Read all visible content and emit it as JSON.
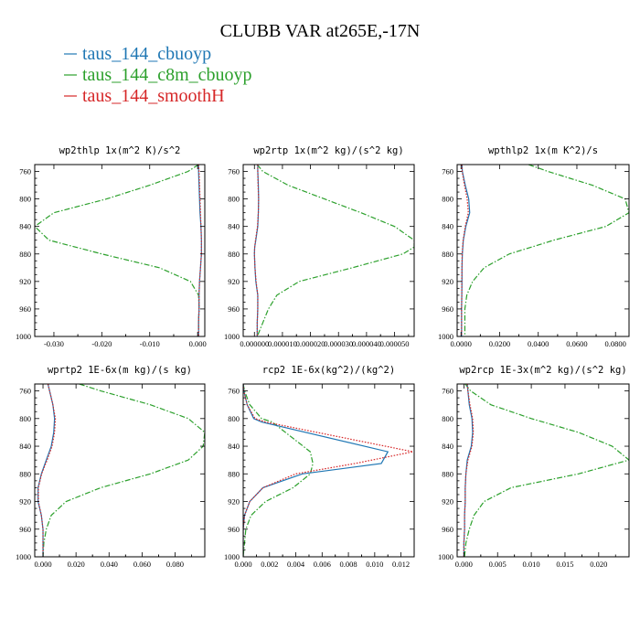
{
  "title": "CLUBB VAR at265E,-17N",
  "series": [
    {
      "name": "taus_144_cbuoyp",
      "color": "#1f77b4",
      "dash": "solid"
    },
    {
      "name": "taus_144_c8m_cbuoyp",
      "color": "#2ca02c",
      "dash": "dashdot"
    },
    {
      "name": "taus_144_smoothH",
      "color": "#d62728",
      "dash": "dotted"
    }
  ],
  "chart_data": [
    {
      "type": "line",
      "title": "wp2thlp  1x(m^2 K)/s^2",
      "ylim": [
        1000,
        750
      ],
      "yticks": [
        760,
        800,
        840,
        880,
        920,
        960,
        1000
      ],
      "ytick_labels": [
        "760",
        "800",
        "840",
        "880",
        "920",
        "960",
        "1000"
      ],
      "xlim": [
        -0.034,
        0.0015
      ],
      "xticks": [
        -0.03,
        -0.02,
        -0.01,
        0.0
      ],
      "xtick_labels": [
        "-0.030",
        "-0.020",
        "-0.010",
        "0.000"
      ],
      "y": [
        750,
        760,
        780,
        800,
        820,
        840,
        860,
        880,
        900,
        920,
        940,
        960,
        980,
        1000
      ],
      "series": [
        {
          "name": "taus_144_cbuoyp",
          "values": [
            0.0002,
            0.0002,
            0.0003,
            0.0004,
            0.0005,
            0.0007,
            0.0008,
            0.0008,
            0.0006,
            0.0004,
            0.0003,
            0.0003,
            0.0002,
            0.0002
          ]
        },
        {
          "name": "taus_144_c8m_cbuoyp",
          "values": [
            0.0002,
            -0.002,
            -0.01,
            -0.019,
            -0.03,
            -0.034,
            -0.031,
            -0.02,
            -0.008,
            -0.0015,
            0.0002,
            0.0003,
            0.0002,
            0.0002
          ]
        },
        {
          "name": "taus_144_smoothH",
          "values": [
            0.0002,
            0.0003,
            0.0004,
            0.0005,
            0.0006,
            0.0007,
            0.0008,
            0.0008,
            0.0006,
            0.0004,
            0.0003,
            0.0003,
            0.0002,
            0.0002
          ]
        }
      ]
    },
    {
      "type": "line",
      "title": "wp2rtp  1x(m^2 kg)/(s^2 kg)",
      "ylim": [
        1000,
        750
      ],
      "yticks": [
        760,
        800,
        840,
        880,
        920,
        960,
        1000
      ],
      "ytick_labels": [
        "760",
        "800",
        "840",
        "880",
        "920",
        "960",
        "1000"
      ],
      "xlim": [
        -4e-06,
        5.7e-05
      ],
      "xticks": [
        0.0,
        1e-05,
        2e-05,
        3e-05,
        4e-05,
        5e-05
      ],
      "xtick_labels": [
        "0.000000",
        "0.000010",
        "0.000020",
        "0.000030",
        "0.000040",
        "0.000050"
      ],
      "y": [
        750,
        760,
        780,
        800,
        820,
        840,
        860,
        870,
        880,
        900,
        920,
        940,
        960,
        980,
        1000
      ],
      "series": [
        {
          "name": "taus_144_cbuoyp",
          "values": [
            1.2e-06,
            1.2e-06,
            1.4e-06,
            1.5e-06,
            1.4e-06,
            1.2e-06,
            5e-07,
            1e-07,
            0.0,
            2e-07,
            5e-07,
            1.2e-06,
            1.2e-06,
            1e-06,
            1e-06
          ]
        },
        {
          "name": "taus_144_c8m_cbuoyp",
          "values": [
            1e-06,
            3e-06,
            1.2e-05,
            2.5e-05,
            3.8e-05,
            5e-05,
            5.7e-05,
            5.7e-05,
            5.3e-05,
            3.5e-05,
            1.6e-05,
            8e-06,
            5e-06,
            3e-06,
            1e-06
          ]
        },
        {
          "name": "taus_144_smoothH",
          "values": [
            1.2e-06,
            1.2e-06,
            1.3e-06,
            1.5e-06,
            1.4e-06,
            1.1e-06,
            4e-07,
            1e-07,
            0.0,
            2e-07,
            6e-07,
            1.2e-06,
            1.2e-06,
            1e-06,
            1e-06
          ]
        }
      ]
    },
    {
      "type": "line",
      "title": "wpthlp2  1x(m K^2)/s",
      "ylim": [
        1000,
        750
      ],
      "yticks": [
        760,
        800,
        840,
        880,
        920,
        960,
        1000
      ],
      "ytick_labels": [
        "760",
        "800",
        "840",
        "880",
        "920",
        "960",
        "1000"
      ],
      "xlim": [
        -0.002,
        0.087
      ],
      "xticks": [
        0.0,
        0.02,
        0.04,
        0.06,
        0.08
      ],
      "xtick_labels": [
        "0.0000",
        "0.0200",
        "0.0400",
        "0.0600",
        "0.0800"
      ],
      "y": [
        750,
        760,
        780,
        800,
        820,
        840,
        860,
        880,
        900,
        920,
        940,
        960,
        980,
        1000
      ],
      "series": [
        {
          "name": "taus_144_cbuoyp",
          "values": [
            0.0005,
            0.0007,
            0.0022,
            0.004,
            0.0045,
            0.0025,
            0.0012,
            0.0007,
            0.0005,
            0.0005,
            0.0004,
            0.0003,
            0.0003,
            0.0003
          ]
        },
        {
          "name": "taus_144_c8m_cbuoyp",
          "values": [
            0.035,
            0.045,
            0.068,
            0.085,
            0.087,
            0.075,
            0.048,
            0.025,
            0.012,
            0.006,
            0.003,
            0.002,
            0.002,
            0.002
          ]
        },
        {
          "name": "taus_144_smoothH",
          "values": [
            0.0004,
            0.0006,
            0.0018,
            0.0032,
            0.0038,
            0.0022,
            0.0011,
            0.0006,
            0.0005,
            0.0004,
            0.0004,
            0.0003,
            0.0003,
            0.0003
          ]
        }
      ]
    },
    {
      "type": "line",
      "title": "wprtp2  1E-6x(m kg)/(s kg)",
      "ylim": [
        1000,
        750
      ],
      "yticks": [
        760,
        800,
        840,
        880,
        920,
        960,
        1000
      ],
      "ytick_labels": [
        "760",
        "800",
        "840",
        "880",
        "920",
        "960",
        "1000"
      ],
      "xlim": [
        -0.005,
        0.098
      ],
      "xticks": [
        0.0,
        0.02,
        0.04,
        0.06,
        0.08
      ],
      "xtick_labels": [
        "0.000",
        "0.020",
        "0.040",
        "0.060",
        "0.080"
      ],
      "y": [
        750,
        760,
        780,
        800,
        820,
        840,
        860,
        880,
        900,
        920,
        940,
        960,
        980,
        1000
      ],
      "series": [
        {
          "name": "taus_144_cbuoyp",
          "values": [
            0.003,
            0.004,
            0.006,
            0.007,
            0.0065,
            0.005,
            0.002,
            -0.001,
            -0.003,
            -0.003,
            -0.001,
            0.0,
            0.0,
            0.0
          ]
        },
        {
          "name": "taus_144_c8m_cbuoyp",
          "values": [
            0.022,
            0.035,
            0.065,
            0.088,
            0.098,
            0.097,
            0.088,
            0.065,
            0.035,
            0.014,
            0.005,
            0.002,
            0.0005,
            0.0
          ]
        },
        {
          "name": "taus_144_smoothH",
          "values": [
            0.003,
            0.004,
            0.006,
            0.0075,
            0.007,
            0.0055,
            0.0025,
            -0.0008,
            -0.0028,
            -0.0028,
            -0.001,
            0.0,
            0.0,
            0.0
          ]
        }
      ]
    },
    {
      "type": "line",
      "title": "rcp2  1E-6x(kg^2)/(kg^2)",
      "ylim": [
        1000,
        750
      ],
      "yticks": [
        760,
        800,
        840,
        880,
        920,
        960,
        1000
      ],
      "ytick_labels": [
        "760",
        "800",
        "840",
        "880",
        "920",
        "960",
        "1000"
      ],
      "xlim": [
        0.0,
        0.013
      ],
      "xticks": [
        0.0,
        0.002,
        0.004,
        0.006,
        0.008,
        0.01,
        0.012
      ],
      "xtick_labels": [
        "0.000",
        "0.002",
        "0.004",
        "0.006",
        "0.008",
        "0.010",
        "0.012"
      ],
      "y": [
        750,
        760,
        780,
        800,
        805,
        848,
        865,
        880,
        900,
        920,
        940,
        960,
        1000
      ],
      "series": [
        {
          "name": "taus_144_cbuoyp",
          "values": [
            0.0,
            5e-05,
            0.0003,
            0.0008,
            0.0014,
            0.011,
            0.0105,
            0.0045,
            0.0015,
            0.0005,
            0.0001,
            0.0,
            0.0
          ]
        },
        {
          "name": "taus_144_c8m_cbuoyp",
          "values": [
            0.0,
            0.0001,
            0.0005,
            0.0014,
            0.0022,
            0.0051,
            0.0053,
            0.0051,
            0.0038,
            0.0017,
            0.0006,
            0.0002,
            0.0
          ]
        },
        {
          "name": "taus_144_smoothH",
          "values": [
            0.0,
            5e-05,
            0.0003,
            0.0009,
            0.0017,
            0.0129,
            0.0085,
            0.004,
            0.0015,
            0.0005,
            0.0001,
            0.0,
            0.0
          ]
        }
      ]
    },
    {
      "type": "line",
      "title": "wp2rcp  1E-3x(m^2 kg)/(s^2 kg)",
      "ylim": [
        1000,
        750
      ],
      "yticks": [
        760,
        800,
        840,
        880,
        920,
        960,
        1000
      ],
      "ytick_labels": [
        "760",
        "800",
        "840",
        "880",
        "920",
        "960",
        "1000"
      ],
      "xlim": [
        -0.001,
        0.0245
      ],
      "xticks": [
        0.0,
        0.005,
        0.01,
        0.015,
        0.02
      ],
      "xtick_labels": [
        "0.000",
        "0.005",
        "0.010",
        "0.015",
        "0.020"
      ],
      "y": [
        750,
        760,
        780,
        800,
        820,
        840,
        860,
        880,
        900,
        920,
        940,
        960,
        980,
        1000
      ],
      "series": [
        {
          "name": "taus_144_cbuoyp",
          "values": [
            0.0005,
            0.0006,
            0.0008,
            0.0012,
            0.0013,
            0.0011,
            0.0005,
            0.0003,
            0.0002,
            0.0002,
            0.0001,
            0.0001,
            0.0,
            0.0
          ]
        },
        {
          "name": "taus_144_c8m_cbuoyp",
          "values": [
            0.0002,
            0.001,
            0.004,
            0.01,
            0.017,
            0.022,
            0.0245,
            0.017,
            0.007,
            0.003,
            0.0015,
            0.0008,
            0.0003,
            0.0001
          ]
        },
        {
          "name": "taus_144_smoothH",
          "values": [
            0.0005,
            0.0006,
            0.0009,
            0.0013,
            0.0014,
            0.0012,
            0.0006,
            0.0003,
            0.0002,
            0.0002,
            0.0001,
            0.0001,
            0.0,
            0.0
          ]
        }
      ]
    }
  ]
}
